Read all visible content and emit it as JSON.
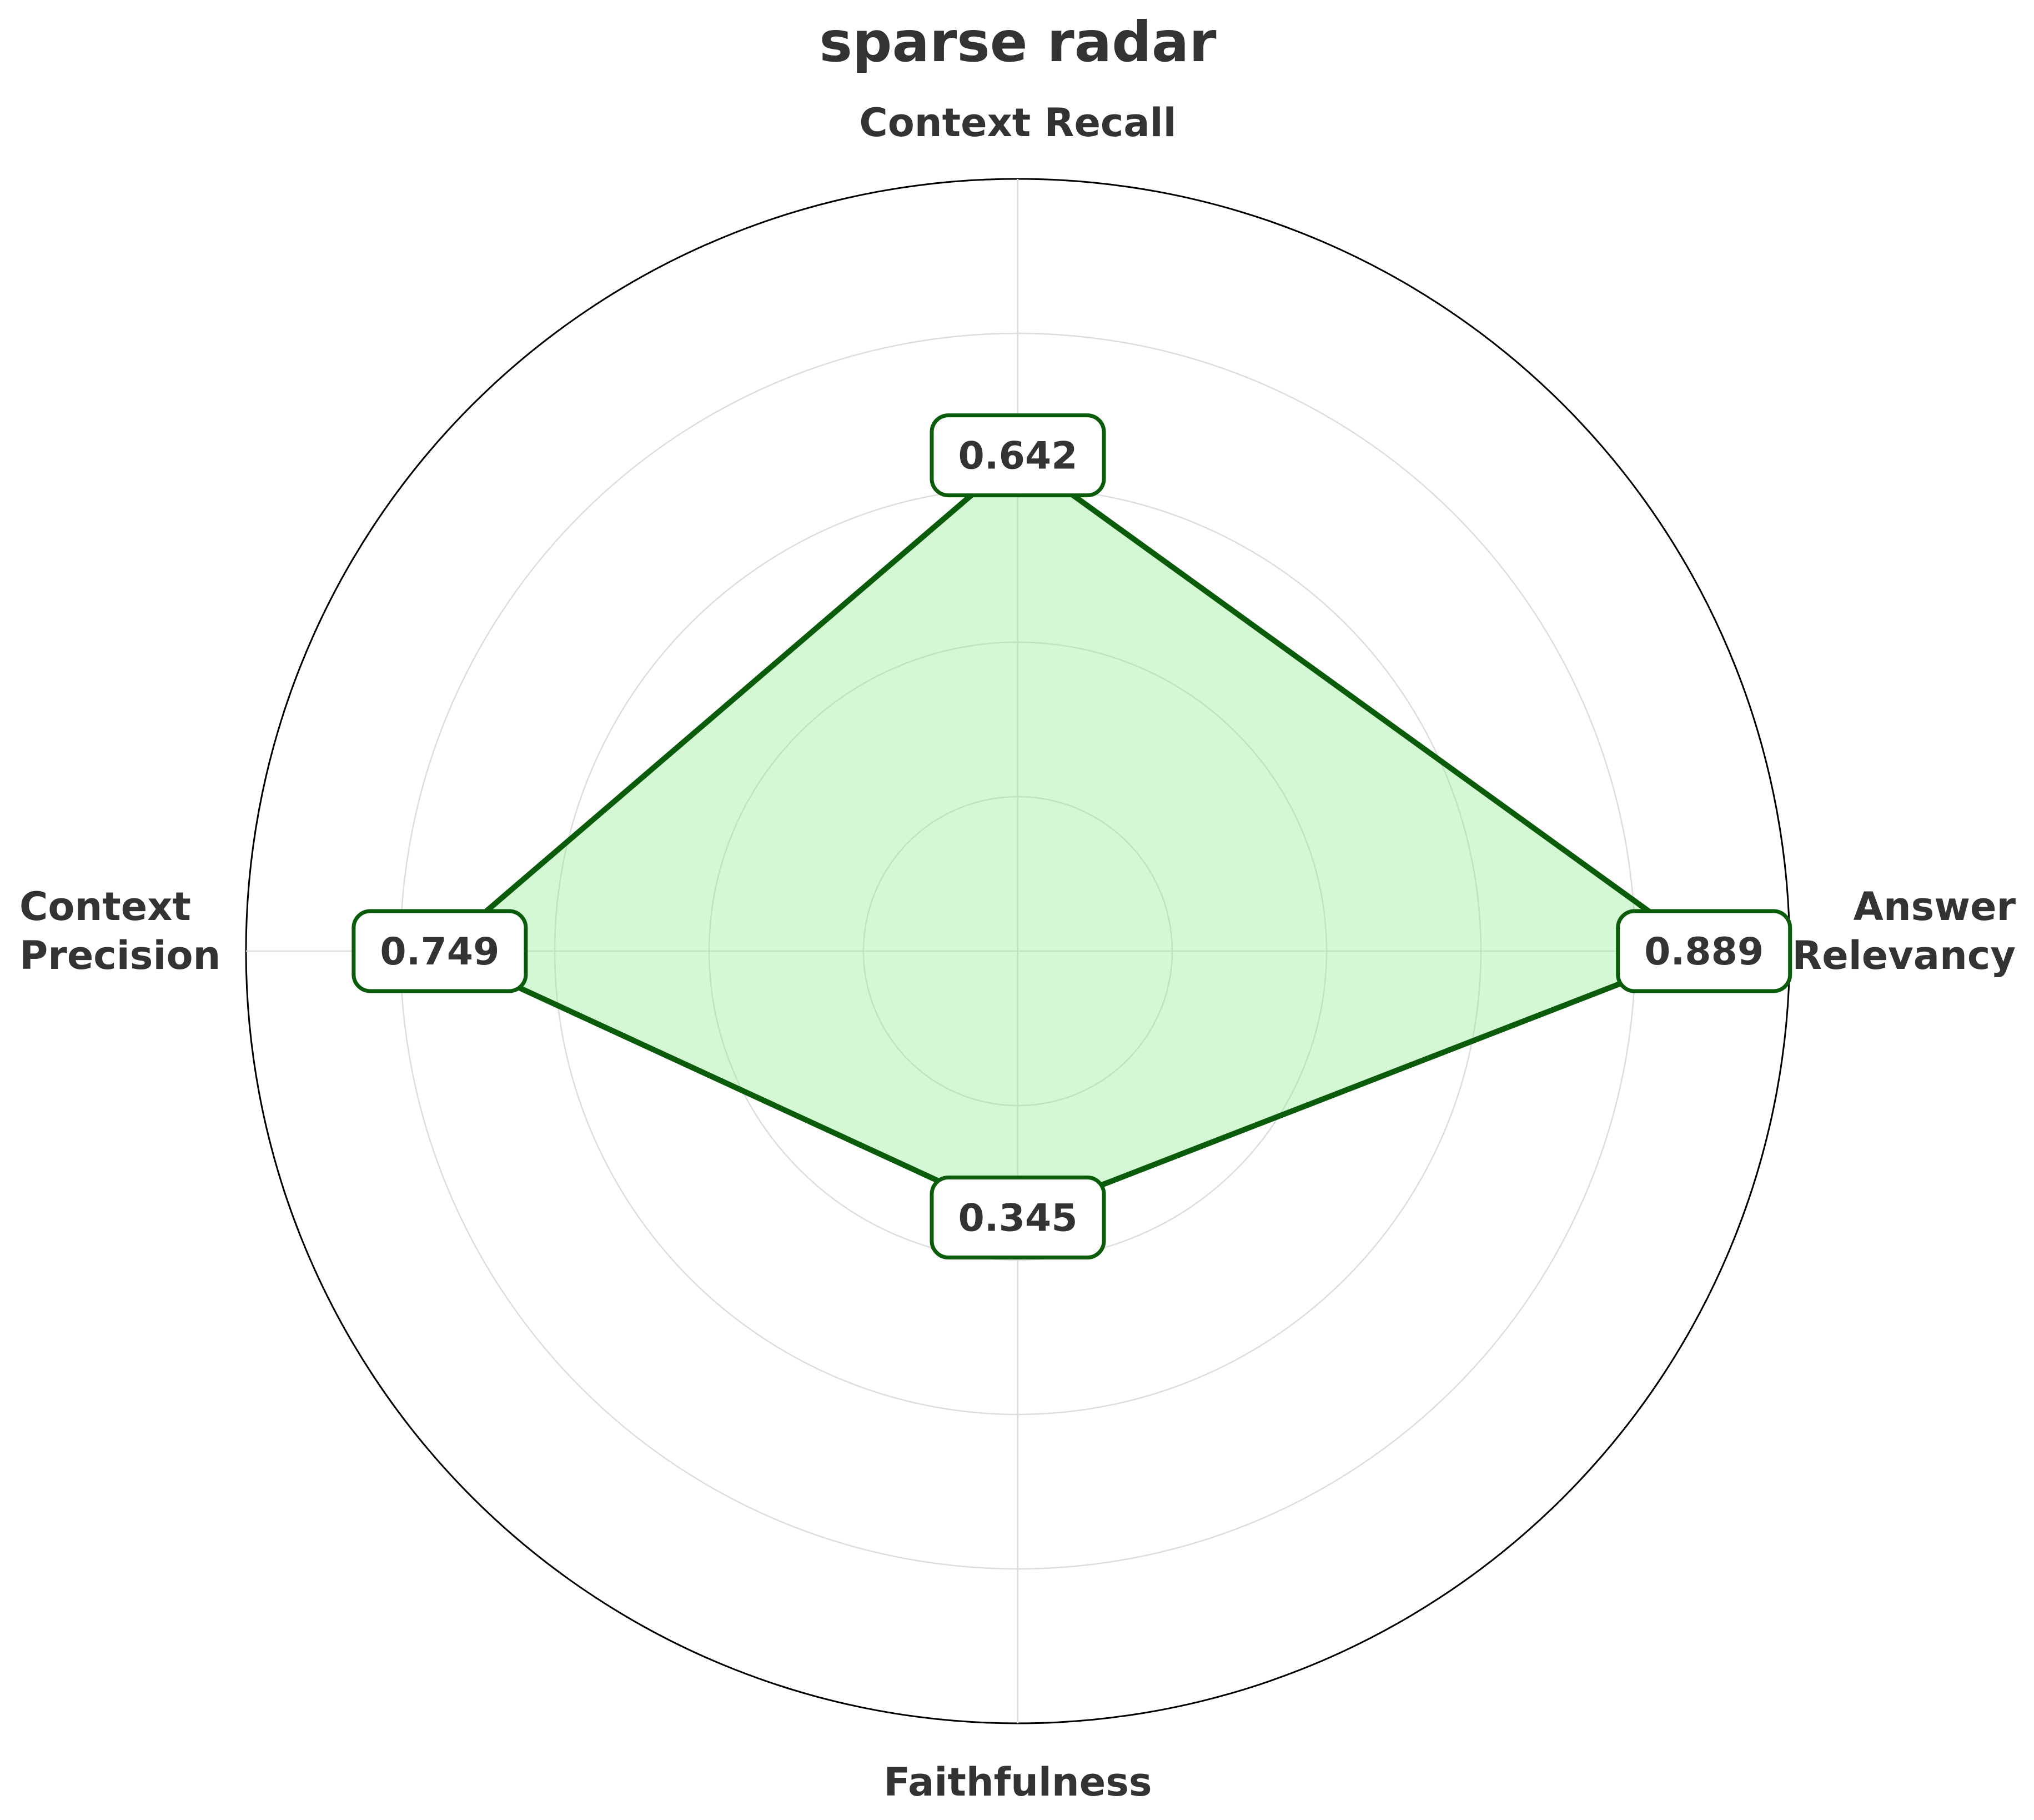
{
  "chart_data": {
    "type": "radar",
    "title": "sparse radar",
    "axes": [
      "Context Recall",
      "Answer Relevancy",
      "Faithfulness",
      "Context Precision"
    ],
    "axis_label_lines": [
      [
        "Context Recall"
      ],
      [
        "Answer",
        "Relevancy"
      ],
      [
        "Faithfulness"
      ],
      [
        "Context",
        "Precision"
      ]
    ],
    "values": [
      0.642,
      0.889,
      0.345,
      0.749
    ],
    "value_labels": [
      "0.642",
      "0.889",
      "0.345",
      "0.749"
    ],
    "rlim": [
      0,
      1
    ],
    "grid_rings": [
      0.2,
      0.4,
      0.6,
      0.8,
      1.0
    ],
    "grid": true,
    "colors": {
      "line": "#0a5c0a",
      "fill": "#90ee90",
      "text": "#333333",
      "grid": "#dddddd",
      "outer_ring": "#000000"
    }
  }
}
